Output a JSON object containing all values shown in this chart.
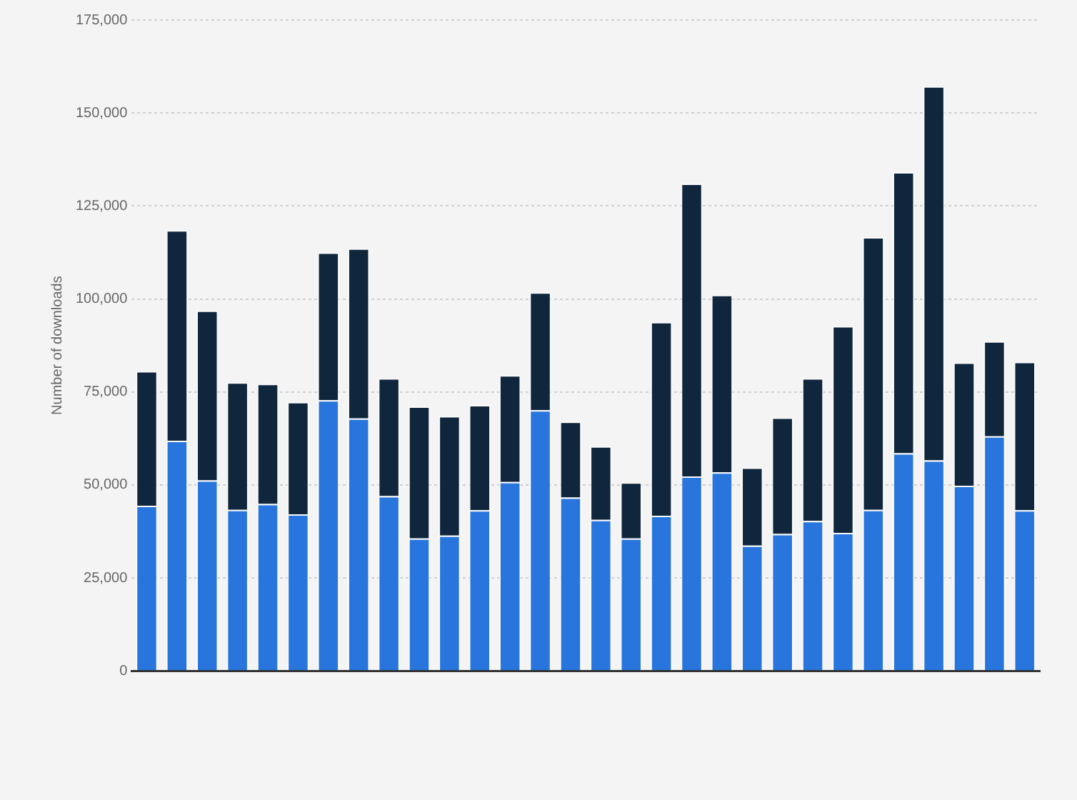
{
  "chart_data": {
    "type": "bar",
    "stacked": true,
    "ylabel": "Number of downloads",
    "categories": [
      null,
      null,
      null,
      null,
      null,
      null,
      null,
      null,
      null,
      null,
      null,
      null,
      null,
      null,
      null,
      null,
      null,
      null,
      null,
      null,
      null,
      null,
      null,
      null,
      null,
      null,
      null,
      null,
      null,
      null
    ],
    "series": [
      {
        "color": "#2876dd",
        "values": [
          44400,
          61900,
          51200,
          43300,
          44900,
          42100,
          72800,
          67900,
          47000,
          35600,
          36400,
          43200,
          50800,
          70100,
          46600,
          40600,
          35600,
          41700,
          52300,
          53400,
          33700,
          36800,
          40300,
          37100,
          43300,
          58500,
          56600,
          49800,
          63100,
          43200
        ]
      },
      {
        "color": "#0f263d",
        "values": [
          36200,
          56600,
          45700,
          34300,
          32300,
          30200,
          39700,
          45700,
          31700,
          35500,
          32100,
          28300,
          28700,
          31700,
          20400,
          19800,
          15100,
          52100,
          78700,
          47700,
          21000,
          31300,
          38400,
          55600,
          73300,
          75600,
          100600,
          33100,
          25500,
          39900
        ]
      }
    ],
    "ylim": [
      0,
      175000
    ],
    "yticks": [
      {
        "value": 0,
        "label": "0"
      },
      {
        "value": 25000,
        "label": "25,000"
      },
      {
        "value": 50000,
        "label": "50,000"
      },
      {
        "value": 75000,
        "label": "75,000"
      },
      {
        "value": 100000,
        "label": "100,000"
      },
      {
        "value": 125000,
        "label": "125,000"
      },
      {
        "value": 150000,
        "label": "150,000"
      },
      {
        "value": 175000,
        "label": "175,000"
      }
    ],
    "grid": "y",
    "legend": false
  }
}
